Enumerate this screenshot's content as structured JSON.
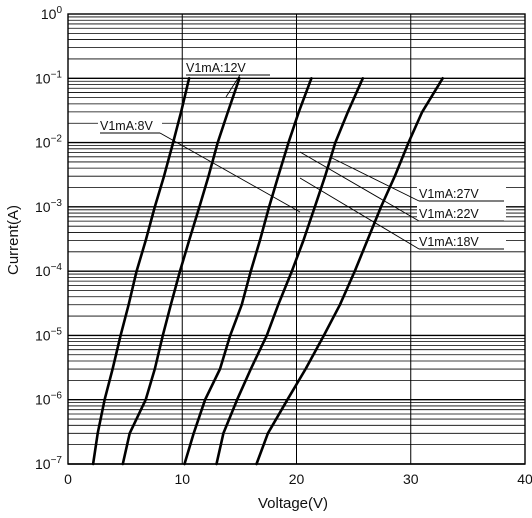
{
  "chart_data": {
    "type": "line",
    "xlabel": "Voltage(V)",
    "ylabel": "Current(A)",
    "x_scale": "linear",
    "y_scale": "log",
    "xlim": [
      0,
      40
    ],
    "ylim": [
      1e-07,
      1
    ],
    "x_ticks": [
      "0",
      "10",
      "20",
      "30",
      "40"
    ],
    "y_ticks": [
      {
        "base": "10",
        "exp": "0"
      },
      {
        "base": "10",
        "exp": "−1"
      },
      {
        "base": "10",
        "exp": "−2"
      },
      {
        "base": "10",
        "exp": "−3"
      },
      {
        "base": "10",
        "exp": "−4"
      },
      {
        "base": "10",
        "exp": "−5"
      },
      {
        "base": "10",
        "exp": "−6"
      },
      {
        "base": "10",
        "exp": "−7"
      }
    ],
    "grid": true,
    "series": [
      {
        "name": "V1mA:8V",
        "points": [
          [
            2.2,
            1e-07
          ],
          [
            2.6,
            3e-07
          ],
          [
            3.2,
            1e-06
          ],
          [
            3.9,
            3e-06
          ],
          [
            4.6,
            1e-05
          ],
          [
            5.3,
            3e-05
          ],
          [
            6.0,
            0.0001
          ],
          [
            6.8,
            0.0003
          ],
          [
            7.6,
            0.001
          ],
          [
            8.4,
            0.003
          ],
          [
            9.2,
            0.01
          ],
          [
            9.9,
            0.03
          ],
          [
            10.6,
            0.1
          ]
        ]
      },
      {
        "name": "V1mA:12V",
        "points": [
          [
            4.8,
            1e-07
          ],
          [
            5.4,
            3e-07
          ],
          [
            6.8,
            1e-06
          ],
          [
            7.6,
            3e-06
          ],
          [
            8.3,
            1e-05
          ],
          [
            9.0,
            3e-05
          ],
          [
            9.8,
            0.0001
          ],
          [
            10.6,
            0.0003
          ],
          [
            11.5,
            0.001
          ],
          [
            12.3,
            0.003
          ],
          [
            13.1,
            0.01
          ],
          [
            14.0,
            0.03
          ],
          [
            15.0,
            0.1
          ]
        ]
      },
      {
        "name": "V1mA:18V",
        "points": [
          [
            10.2,
            1e-07
          ],
          [
            11.0,
            3e-07
          ],
          [
            12.0,
            1e-06
          ],
          [
            13.3,
            3e-06
          ],
          [
            14.2,
            1e-05
          ],
          [
            15.2,
            3e-05
          ],
          [
            16.0,
            0.0001
          ],
          [
            16.8,
            0.0003
          ],
          [
            17.6,
            0.001
          ],
          [
            18.4,
            0.003
          ],
          [
            19.3,
            0.01
          ],
          [
            20.2,
            0.03
          ],
          [
            21.3,
            0.1
          ]
        ]
      },
      {
        "name": "V1mA:22V",
        "points": [
          [
            13.0,
            1e-07
          ],
          [
            13.6,
            3e-07
          ],
          [
            14.8,
            1e-06
          ],
          [
            16.0,
            3e-06
          ],
          [
            17.4,
            1e-05
          ],
          [
            18.4,
            3e-05
          ],
          [
            19.6,
            0.0001
          ],
          [
            20.6,
            0.0003
          ],
          [
            21.6,
            0.001
          ],
          [
            22.5,
            0.003
          ],
          [
            23.4,
            0.01
          ],
          [
            24.5,
            0.03
          ],
          [
            25.8,
            0.1
          ]
        ]
      },
      {
        "name": "V1mA:27V",
        "points": [
          [
            16.5,
            1e-07
          ],
          [
            17.5,
            3e-07
          ],
          [
            19.2,
            1e-06
          ],
          [
            20.8,
            3e-06
          ],
          [
            22.4,
            1e-05
          ],
          [
            23.8,
            3e-05
          ],
          [
            25.1,
            0.0001
          ],
          [
            26.2,
            0.0003
          ],
          [
            27.4,
            0.001
          ],
          [
            28.6,
            0.003
          ],
          [
            29.8,
            0.01
          ],
          [
            31.0,
            0.03
          ],
          [
            32.8,
            0.1
          ]
        ]
      }
    ],
    "annotations": [
      {
        "text": "V1mA:12V"
      },
      {
        "text": "V1mA:8V"
      },
      {
        "text": "V1mA:27V"
      },
      {
        "text": "V1mA:22V"
      },
      {
        "text": "V1mA:18V"
      }
    ]
  }
}
